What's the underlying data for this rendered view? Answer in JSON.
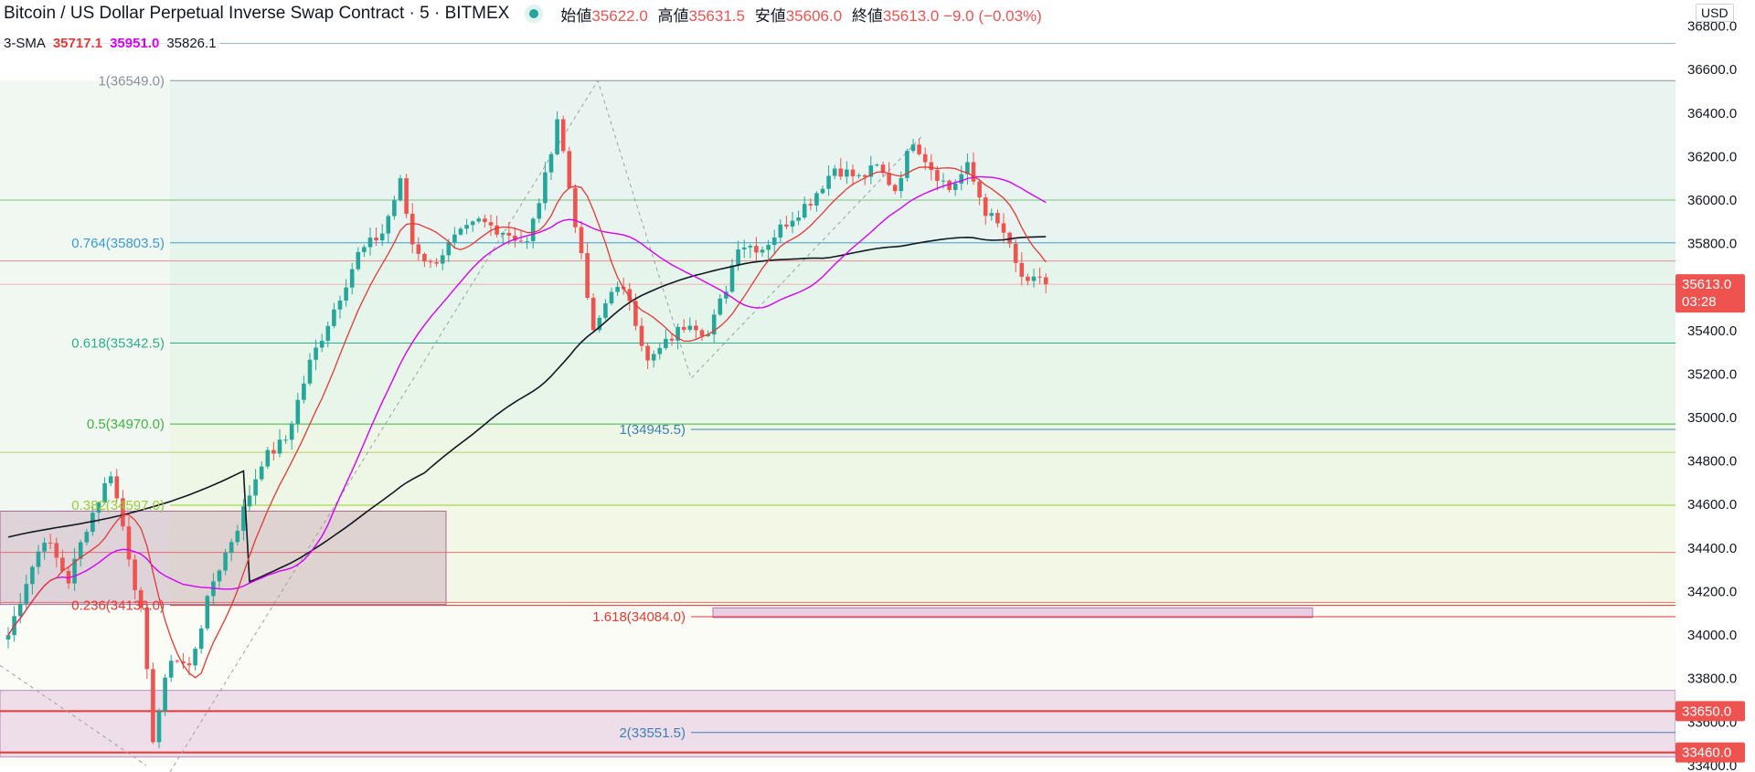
{
  "header": {
    "title": "Bitcoin / US Dollar Perpetual Inverse Swap Contract · 5 · BITMEX",
    "ohlc": [
      {
        "label": "始値",
        "value": "35622.0"
      },
      {
        "label": "高値",
        "value": "35631.5"
      },
      {
        "label": "安値",
        "value": "35606.0"
      },
      {
        "label": "終値",
        "value": "35613.0"
      }
    ],
    "change": "−9.0 (−0.03%)"
  },
  "indicator": {
    "name": "3-SMA",
    "v1": "35717.1",
    "v2": "35951.0",
    "v3": "35826.1"
  },
  "currency": "USD",
  "colors": {
    "up": "#26a69a",
    "down": "#ef5350",
    "sma_fast": "#e53935",
    "sma_mid": "#d500f9",
    "sma_slow": "#131722",
    "price_box": "#ef5350"
  },
  "price_labels": {
    "current": {
      "price": 35613.0,
      "text": "35613.0",
      "timer": "03:28"
    },
    "levels": [
      {
        "price": 33650.0,
        "text": "33650.0"
      },
      {
        "price": 33460.0,
        "text": "33460.0"
      }
    ]
  },
  "chart_data": {
    "type": "candlestick",
    "y_ticks": [
      "33400.0",
      "33600.0",
      "33800.0",
      "34000.0",
      "34200.0",
      "34400.0",
      "34600.0",
      "34800.0",
      "35000.0",
      "35200.0",
      "35400.0",
      "35600.0",
      "35800.0",
      "36000.0",
      "36200.0",
      "36400.0",
      "36600.0",
      "36800.0"
    ],
    "ylim": [
      33370,
      36920
    ],
    "fib_retracement": [
      {
        "label": "1(36549.0)",
        "price": 36549.0
      },
      {
        "label": "0.764(35803.5)",
        "price": 35803.5
      },
      {
        "label": "0.618(35342.5)",
        "price": 35342.5
      },
      {
        "label": "0.5(34970.0)",
        "price": 34970.0
      },
      {
        "label": "0.382(34597.0)",
        "price": 34597.0
      },
      {
        "label": "0.236(34136.0)",
        "price": 34136.0
      }
    ],
    "fib_extension": [
      {
        "label": "1(34945.5)",
        "price": 34945.5
      },
      {
        "label": "1.618(34084.0)",
        "price": 34084.0
      },
      {
        "label": "2(33551.5)",
        "price": 33551.5
      }
    ],
    "horizontal_levels": [
      36720,
      36000,
      35720,
      35613,
      34840,
      34380,
      34150,
      33650,
      33460
    ],
    "candle_anchors": [
      {
        "i": 0,
        "price": 34000
      },
      {
        "i": 3,
        "price": 34250
      },
      {
        "i": 6,
        "price": 34450
      },
      {
        "i": 10,
        "price": 34250
      },
      {
        "i": 13,
        "price": 34500
      },
      {
        "i": 17,
        "price": 34750
      },
      {
        "i": 19,
        "price": 34500
      },
      {
        "i": 22,
        "price": 34100
      },
      {
        "i": 24,
        "price": 33530
      },
      {
        "i": 27,
        "price": 33900
      },
      {
        "i": 30,
        "price": 33850
      },
      {
        "i": 34,
        "price": 34250
      },
      {
        "i": 38,
        "price": 34500
      },
      {
        "i": 42,
        "price": 34800
      },
      {
        "i": 46,
        "price": 34900
      },
      {
        "i": 50,
        "price": 35250
      },
      {
        "i": 54,
        "price": 35500
      },
      {
        "i": 58,
        "price": 35750
      },
      {
        "i": 62,
        "price": 35850
      },
      {
        "i": 65,
        "price": 36080
      },
      {
        "i": 67,
        "price": 35800
      },
      {
        "i": 70,
        "price": 35700
      },
      {
        "i": 74,
        "price": 35820
      },
      {
        "i": 78,
        "price": 35900
      },
      {
        "i": 82,
        "price": 35860
      },
      {
        "i": 86,
        "price": 35800
      },
      {
        "i": 89,
        "price": 36100
      },
      {
        "i": 91,
        "price": 36380
      },
      {
        "i": 94,
        "price": 35900
      },
      {
        "i": 97,
        "price": 35380
      },
      {
        "i": 100,
        "price": 35600
      },
      {
        "i": 103,
        "price": 35550
      },
      {
        "i": 106,
        "price": 35250
      },
      {
        "i": 110,
        "price": 35370
      },
      {
        "i": 113,
        "price": 35450
      },
      {
        "i": 116,
        "price": 35380
      },
      {
        "i": 119,
        "price": 35600
      },
      {
        "i": 121,
        "price": 35800
      },
      {
        "i": 125,
        "price": 35780
      },
      {
        "i": 129,
        "price": 35900
      },
      {
        "i": 133,
        "price": 36000
      },
      {
        "i": 137,
        "price": 36150
      },
      {
        "i": 141,
        "price": 36100
      },
      {
        "i": 144,
        "price": 36150
      },
      {
        "i": 147,
        "price": 36050
      },
      {
        "i": 150,
        "price": 36280
      },
      {
        "i": 153,
        "price": 36150
      },
      {
        "i": 156,
        "price": 36050
      },
      {
        "i": 159,
        "price": 36150
      },
      {
        "i": 162,
        "price": 35950
      },
      {
        "i": 165,
        "price": 35850
      },
      {
        "i": 167,
        "price": 35700
      },
      {
        "i": 169,
        "price": 35600
      },
      {
        "i": 171,
        "price": 35650
      },
      {
        "i": 172,
        "price": 35613
      }
    ]
  }
}
